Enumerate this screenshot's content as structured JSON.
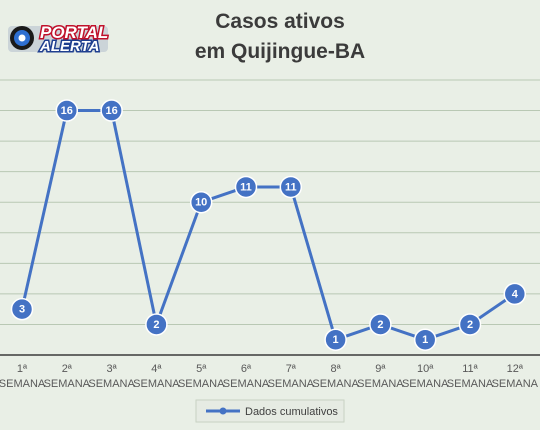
{
  "logo": {
    "line1": "PORTAL",
    "line2": "ALERTA",
    "colors": {
      "red": "#c0102a",
      "blue": "#1f3f8f"
    }
  },
  "chart_data": {
    "type": "line",
    "title": "Casos ativos\nem Quijingue-BA",
    "categories": [
      "1ª\nSEMANA",
      "2ª\nSEMANA",
      "3ª\nSEMANA",
      "4ª\nSEMANA",
      "5ª\nSEMANA",
      "6ª\nSEMANA",
      "7ª\nSEMANA",
      "8ª\nSEMANA",
      "9ª\nSEMANA",
      "10ª\nSEMANA",
      "11ª\nSEMANA",
      "12ª\nSEMANA"
    ],
    "series": [
      {
        "name": "Dados cumulativos",
        "values": [
          3,
          16,
          16,
          2,
          10,
          11,
          11,
          1,
          2,
          1,
          2,
          4
        ],
        "color": "#4472c4"
      }
    ],
    "ylim": [
      0,
      18
    ],
    "y_grid_step": 2,
    "data_labels": true,
    "grid": true,
    "legend": "bottom-center",
    "colors": {
      "background": "#e9efe6",
      "grid": "#b9c8b4"
    }
  }
}
